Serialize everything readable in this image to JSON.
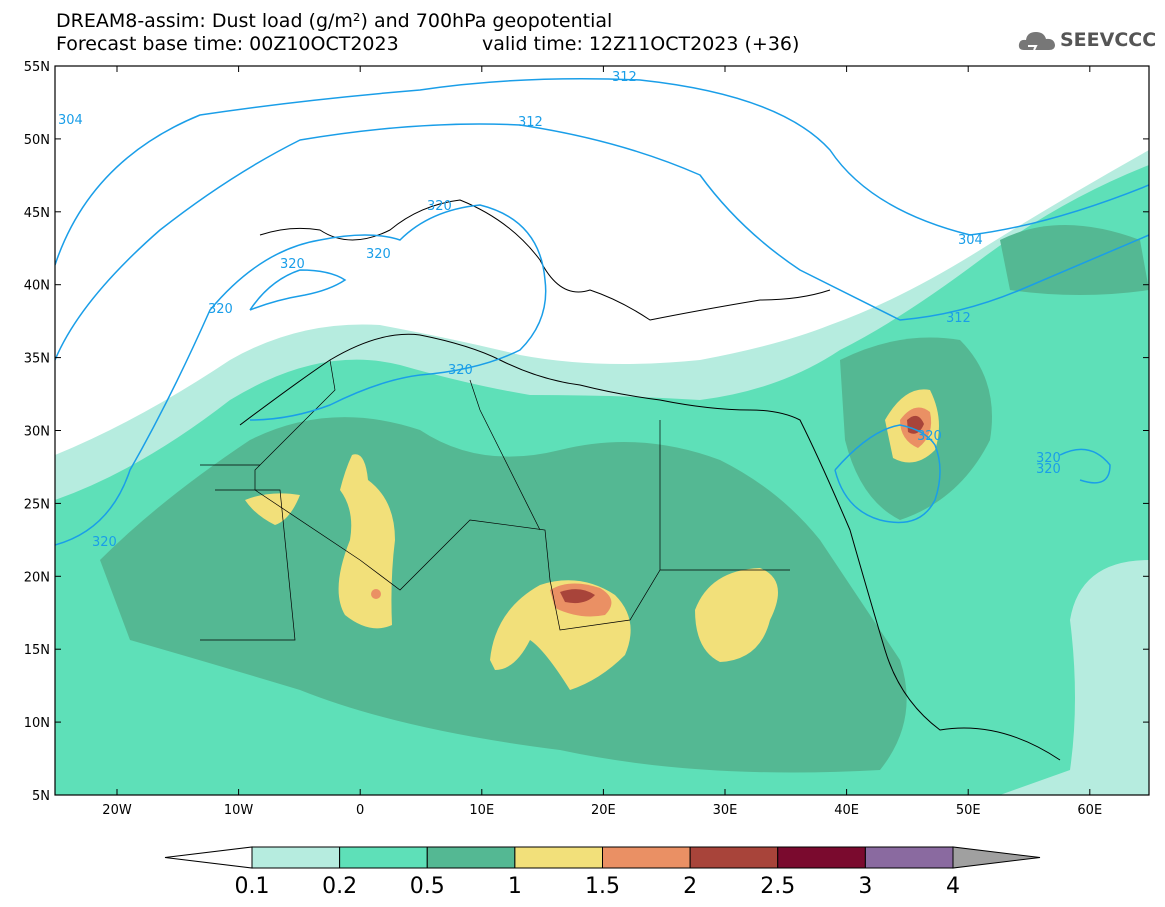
{
  "title_line1": "DREAM8-assim: Dust load (g/m²) and 700hPa geopotential",
  "title_line2": "Forecast base time: 00Z10OCT2023",
  "valid_time": "valid time: 12Z11OCT2023 (+36)",
  "logo_text": "SEEVCCC",
  "y_ticks": [
    "55N",
    "50N",
    "45N",
    "40N",
    "35N",
    "30N",
    "25N",
    "20N",
    "15N",
    "10N",
    "5N"
  ],
  "x_ticks": [
    "20W",
    "10W",
    "0",
    "10E",
    "20E",
    "30E",
    "40E",
    "50E",
    "60E"
  ],
  "contour_labels": [
    "304",
    "312",
    "320",
    "320",
    "320",
    "320",
    "320",
    "320",
    "320",
    "304",
    "312",
    "304",
    "320",
    "320",
    "296"
  ],
  "colorbar": {
    "labels": [
      "0.1",
      "0.2",
      "0.5",
      "1",
      "1.5",
      "2",
      "2.5",
      "3",
      "4"
    ],
    "colors": [
      "#b6ecdf",
      "#5ee0b8",
      "#54b893",
      "#f2e07a",
      "#ea9064",
      "#a8443a",
      "#7a0a2e",
      "#8a6aa0",
      "#a0a0a0"
    ]
  },
  "colors": {
    "ocean": "#ffffff",
    "contour": "#1a9ee8",
    "borders": "#000000"
  }
}
